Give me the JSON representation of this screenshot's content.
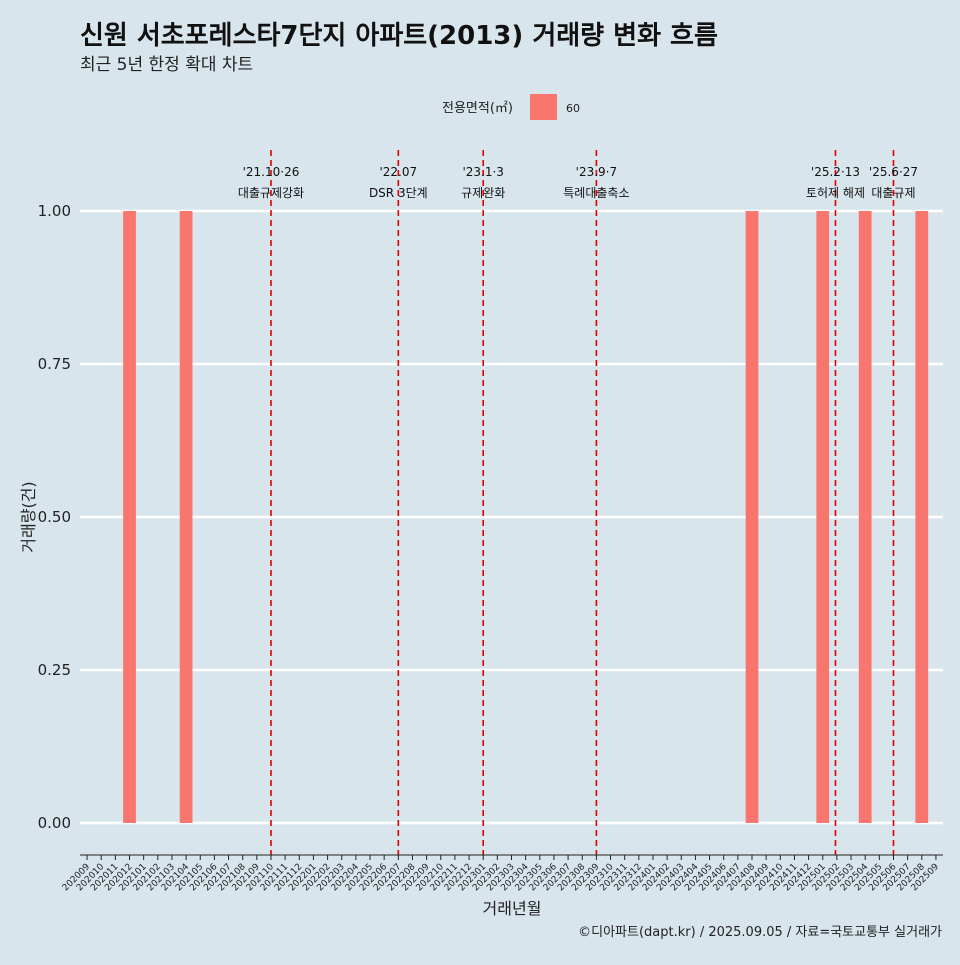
{
  "chart_data": {
    "type": "bar",
    "title": "신원 서초포레스타7단지 아파트(2013) 거래량 변화 흐름",
    "subtitle": "최근 5년 한정 확대 차트",
    "xlabel": "거래년월",
    "ylabel": "거래량(건)",
    "ylim": [
      0,
      1
    ],
    "yticks": [
      "0.00",
      "0.25",
      "0.50",
      "0.75",
      "1.00"
    ],
    "legend": {
      "title": "전용면적(㎡)",
      "placement": "top",
      "entries": [
        {
          "label": "60",
          "color": "#f8766d"
        }
      ]
    },
    "categories": [
      "202009",
      "202010",
      "202011",
      "202012",
      "202101",
      "202102",
      "202103",
      "202104",
      "202105",
      "202106",
      "202107",
      "202108",
      "202109",
      "202110",
      "202111",
      "202112",
      "202201",
      "202202",
      "202203",
      "202204",
      "202205",
      "202206",
      "202207",
      "202208",
      "202209",
      "202210",
      "202211",
      "202212",
      "202301",
      "202302",
      "202303",
      "202304",
      "202305",
      "202306",
      "202307",
      "202308",
      "202309",
      "202310",
      "202311",
      "202312",
      "202401",
      "202402",
      "202403",
      "202404",
      "202405",
      "202406",
      "202407",
      "202408",
      "202409",
      "202410",
      "202411",
      "202412",
      "202501",
      "202502",
      "202503",
      "202504",
      "202505",
      "202506",
      "202507",
      "202508",
      "202509"
    ],
    "series": [
      {
        "name": "60",
        "color": "#f8766d",
        "values": [
          0,
          0,
          0,
          1,
          0,
          0,
          0,
          1,
          0,
          0,
          0,
          0,
          0,
          0,
          0,
          0,
          0,
          0,
          0,
          0,
          0,
          0,
          0,
          0,
          0,
          0,
          0,
          0,
          0,
          0,
          0,
          0,
          0,
          0,
          0,
          0,
          0,
          0,
          0,
          0,
          0,
          0,
          0,
          0,
          0,
          0,
          0,
          1,
          0,
          0,
          0,
          0,
          1,
          0,
          0,
          1,
          0,
          0,
          0,
          1,
          0
        ]
      }
    ],
    "events": [
      {
        "date": "202110",
        "line1": "'21.10·26",
        "line2": "대출규제강화"
      },
      {
        "date": "202207",
        "line1": "'22.07",
        "line2": "DSR 3단계"
      },
      {
        "date": "202301",
        "line1": "'23.1·3",
        "line2": "규제완화"
      },
      {
        "date": "202309",
        "line1": "'23.9·7",
        "line2": "특례대출축소"
      },
      {
        "date": "2025-02-13",
        "line1": "'25.2·13",
        "line2": "토허제 해제"
      },
      {
        "date": "202506",
        "line1": "'25.6·27",
        "line2": "대출규제"
      }
    ],
    "grid": true,
    "caption": "©디아파트(dapt.kr) / 2025.09.05 / 자료=국토교통부 실거래가"
  }
}
